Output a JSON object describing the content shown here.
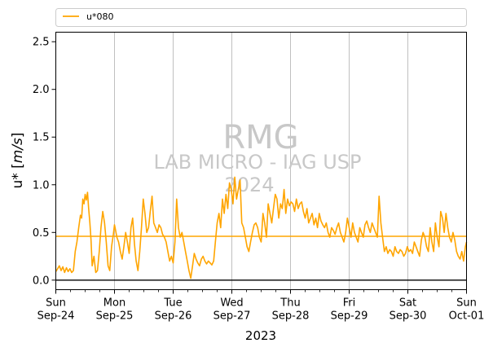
{
  "chart_data": {
    "type": "line",
    "xlabel": "2023",
    "ylabel_base": "u* [",
    "ylabel_unit": "m/s",
    "ylabel_close": "]",
    "ylim": [
      -0.1,
      2.6
    ],
    "yticks": [
      "0.0",
      "0.5",
      "1.0",
      "1.5",
      "2.0",
      "2.5"
    ],
    "xlim_days": [
      0,
      7
    ],
    "xticks": [
      {
        "day": "Sun",
        "date": "Sep-24"
      },
      {
        "day": "Mon",
        "date": "Sep-25"
      },
      {
        "day": "Tue",
        "date": "Sep-26"
      },
      {
        "day": "Wed",
        "date": "Sep-27"
      },
      {
        "day": "Thu",
        "date": "Sep-28"
      },
      {
        "day": "Fri",
        "date": "Sep-29"
      },
      {
        "day": "Sat",
        "date": "Sep-30"
      },
      {
        "day": "Sun",
        "date": "Oct-01"
      }
    ],
    "grid": "vertical-major",
    "legend_position": "top",
    "legend": [
      {
        "name": "u*080",
        "color": "#ffa500"
      }
    ],
    "mean_line": {
      "value": 0.46,
      "color": "#ffa500"
    },
    "zero_line": {
      "value": 0.0,
      "color": "#000000"
    },
    "series": [
      {
        "name": "u*080",
        "color": "#ffa500",
        "x": [
          0.0,
          0.03,
          0.06,
          0.09,
          0.12,
          0.15,
          0.18,
          0.21,
          0.24,
          0.27,
          0.3,
          0.33,
          0.36,
          0.39,
          0.42,
          0.44,
          0.46,
          0.48,
          0.5,
          0.52,
          0.54,
          0.56,
          0.58,
          0.6,
          0.62,
          0.65,
          0.68,
          0.71,
          0.74,
          0.77,
          0.8,
          0.83,
          0.86,
          0.89,
          0.92,
          0.95,
          0.98,
          1.0,
          1.02,
          1.04,
          1.07,
          1.1,
          1.13,
          1.16,
          1.19,
          1.22,
          1.25,
          1.28,
          1.31,
          1.34,
          1.37,
          1.4,
          1.43,
          1.46,
          1.49,
          1.52,
          1.55,
          1.58,
          1.61,
          1.64,
          1.67,
          1.7,
          1.73,
          1.76,
          1.79,
          1.82,
          1.85,
          1.88,
          1.91,
          1.94,
          1.97,
          2.0,
          2.03,
          2.06,
          2.09,
          2.12,
          2.15,
          2.18,
          2.21,
          2.24,
          2.27,
          2.3,
          2.33,
          2.36,
          2.39,
          2.42,
          2.45,
          2.48,
          2.51,
          2.54,
          2.57,
          2.6,
          2.63,
          2.66,
          2.69,
          2.72,
          2.75,
          2.78,
          2.81,
          2.84,
          2.87,
          2.9,
          2.93,
          2.96,
          2.99,
          3.02,
          3.05,
          3.08,
          3.11,
          3.14,
          3.17,
          3.2,
          3.23,
          3.26,
          3.29,
          3.32,
          3.35,
          3.38,
          3.41,
          3.44,
          3.47,
          3.5,
          3.53,
          3.56,
          3.59,
          3.62,
          3.65,
          3.68,
          3.71,
          3.74,
          3.77,
          3.8,
          3.83,
          3.86,
          3.89,
          3.92,
          3.95,
          3.98,
          4.01,
          4.04,
          4.07,
          4.1,
          4.13,
          4.16,
          4.19,
          4.22,
          4.25,
          4.28,
          4.31,
          4.34,
          4.37,
          4.4,
          4.43,
          4.46,
          4.49,
          4.52,
          4.55,
          4.58,
          4.61,
          4.64,
          4.67,
          4.7,
          4.73,
          4.76,
          4.79,
          4.82,
          4.85,
          4.88,
          4.91,
          4.94,
          4.97,
          5.0,
          5.03,
          5.06,
          5.09,
          5.12,
          5.15,
          5.18,
          5.21,
          5.24,
          5.27,
          5.3,
          5.33,
          5.36,
          5.39,
          5.42,
          5.45,
          5.48,
          5.51,
          5.54,
          5.57,
          5.6,
          5.63,
          5.66,
          5.69,
          5.72,
          5.75,
          5.78,
          5.81,
          5.84,
          5.87,
          5.9,
          5.93,
          5.96,
          5.99,
          6.02,
          6.05,
          6.08,
          6.11,
          6.14,
          6.17,
          6.2,
          6.23,
          6.26,
          6.29,
          6.32,
          6.35,
          6.38,
          6.41,
          6.44,
          6.47,
          6.5,
          6.53,
          6.56,
          6.59,
          6.62,
          6.65,
          6.68,
          6.71,
          6.74,
          6.77,
          6.8,
          6.83,
          6.86,
          6.89,
          6.92,
          6.95,
          6.98,
          7.0
        ],
        "y": [
          0.09,
          0.12,
          0.15,
          0.1,
          0.14,
          0.08,
          0.13,
          0.09,
          0.12,
          0.08,
          0.1,
          0.3,
          0.4,
          0.55,
          0.68,
          0.65,
          0.85,
          0.8,
          0.9,
          0.84,
          0.92,
          0.75,
          0.6,
          0.42,
          0.15,
          0.25,
          0.08,
          0.1,
          0.3,
          0.55,
          0.72,
          0.6,
          0.4,
          0.15,
          0.1,
          0.35,
          0.48,
          0.58,
          0.52,
          0.45,
          0.4,
          0.3,
          0.22,
          0.35,
          0.5,
          0.4,
          0.28,
          0.55,
          0.65,
          0.38,
          0.2,
          0.1,
          0.3,
          0.55,
          0.85,
          0.7,
          0.5,
          0.55,
          0.72,
          0.88,
          0.6,
          0.55,
          0.5,
          0.58,
          0.55,
          0.48,
          0.45,
          0.4,
          0.3,
          0.2,
          0.25,
          0.18,
          0.4,
          0.85,
          0.55,
          0.45,
          0.5,
          0.4,
          0.3,
          0.2,
          0.1,
          0.02,
          0.15,
          0.28,
          0.22,
          0.18,
          0.15,
          0.22,
          0.25,
          0.2,
          0.17,
          0.2,
          0.18,
          0.16,
          0.2,
          0.4,
          0.6,
          0.7,
          0.55,
          0.85,
          0.7,
          0.9,
          0.75,
          1.02,
          0.95,
          0.8,
          1.08,
          0.85,
          0.95,
          1.05,
          0.6,
          0.55,
          0.45,
          0.35,
          0.3,
          0.4,
          0.5,
          0.58,
          0.6,
          0.55,
          0.45,
          0.4,
          0.7,
          0.6,
          0.45,
          0.8,
          0.7,
          0.6,
          0.75,
          0.9,
          0.85,
          0.65,
          0.8,
          0.75,
          0.95,
          0.7,
          0.85,
          0.78,
          0.82,
          0.8,
          0.72,
          0.85,
          0.75,
          0.8,
          0.82,
          0.72,
          0.65,
          0.75,
          0.6,
          0.65,
          0.7,
          0.58,
          0.65,
          0.55,
          0.7,
          0.62,
          0.58,
          0.55,
          0.6,
          0.5,
          0.45,
          0.55,
          0.52,
          0.48,
          0.55,
          0.6,
          0.5,
          0.45,
          0.4,
          0.5,
          0.65,
          0.55,
          0.45,
          0.6,
          0.5,
          0.45,
          0.4,
          0.55,
          0.5,
          0.45,
          0.58,
          0.62,
          0.55,
          0.5,
          0.6,
          0.55,
          0.5,
          0.45,
          0.88,
          0.6,
          0.45,
          0.3,
          0.35,
          0.28,
          0.32,
          0.3,
          0.25,
          0.35,
          0.3,
          0.28,
          0.32,
          0.3,
          0.25,
          0.28,
          0.35,
          0.3,
          0.32,
          0.28,
          0.4,
          0.35,
          0.3,
          0.25,
          0.42,
          0.5,
          0.45,
          0.35,
          0.3,
          0.55,
          0.4,
          0.3,
          0.6,
          0.45,
          0.35,
          0.72,
          0.65,
          0.5,
          0.7,
          0.55,
          0.45,
          0.4,
          0.5,
          0.42,
          0.3,
          0.25,
          0.22,
          0.3,
          0.2,
          0.35,
          0.4
        ]
      }
    ]
  },
  "watermark": {
    "line1": "RMG",
    "line2": "LAB MICRO - IAG USP",
    "line3": "2024"
  }
}
